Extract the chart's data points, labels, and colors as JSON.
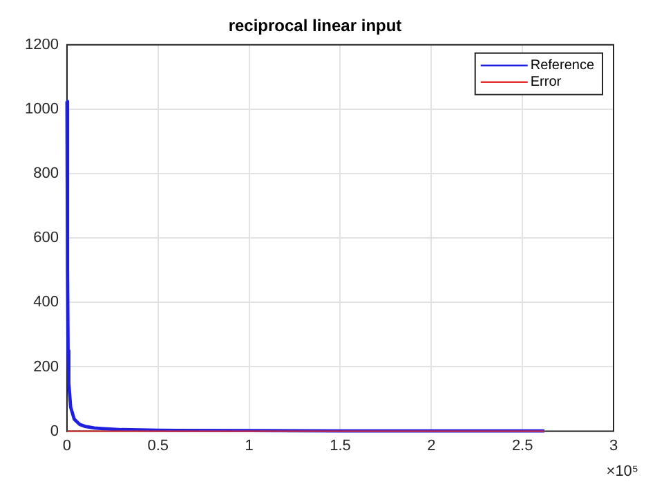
{
  "chart_data": {
    "type": "line",
    "title": "reciprocal linear input",
    "series": [
      {
        "name": "Reference",
        "color": "#1f1fe0",
        "x": [
          0,
          0.003,
          0.006,
          0.01,
          0.02,
          0.04,
          0.07,
          0.1,
          0.15,
          0.2,
          0.3,
          0.5,
          1,
          1.5,
          2,
          2.62
        ],
        "values": [
          1024,
          500,
          250,
          150,
          75,
          37,
          21,
          15,
          10,
          8,
          5,
          3,
          2,
          1,
          1,
          1
        ]
      },
      {
        "name": "Error",
        "color": "#e03030",
        "x": [
          0,
          0.5,
          1,
          1.5,
          2,
          2.62
        ],
        "values": [
          0,
          0,
          0,
          0,
          0,
          0
        ]
      }
    ],
    "xlim": [
      0,
      3
    ],
    "xticks": [
      0,
      0.5,
      1,
      1.5,
      2,
      2.5,
      3
    ],
    "ylim": [
      0,
      1200
    ],
    "yticks": [
      0,
      200,
      400,
      600,
      800,
      1000,
      1200
    ],
    "annotations": [
      "×10⁵"
    ],
    "grid": true,
    "legend": "top right",
    "marker": "none",
    "line_style": "solid"
  }
}
